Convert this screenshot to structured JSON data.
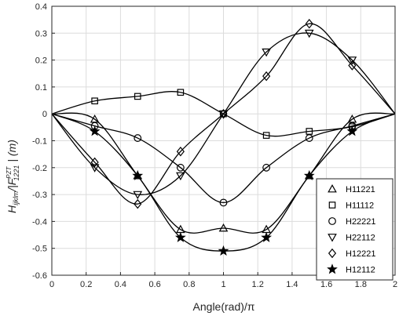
{
  "chart_data": {
    "type": "line",
    "title": "",
    "xlabel": "Angle(rad)/π",
    "ylabel_parts": {
      "main": "H",
      "main_sub": "ijklm",
      "divider": "/|F",
      "f_sub": "1221",
      "f_sup": "PZT",
      "unit": "| (m)"
    },
    "xlim": [
      0,
      2
    ],
    "ylim": [
      -0.6,
      0.4
    ],
    "xticks": [
      0,
      0.2,
      0.4,
      0.6,
      0.8,
      1,
      1.2,
      1.4,
      1.6,
      1.8,
      2
    ],
    "xtick_labels": [
      "0",
      "0.2",
      "0.4",
      "0.6",
      "0.8",
      "1",
      "1.2",
      "1.4",
      "1.6",
      "1.8",
      "2"
    ],
    "yticks": [
      0.4,
      0.3,
      0.2,
      0.1,
      0,
      -0.1,
      -0.2,
      -0.3,
      -0.4,
      -0.5,
      -0.6
    ],
    "ytick_labels": [
      "0.4",
      "0.3",
      "0.2",
      "0.1",
      "0",
      "-0.1",
      "-0.2",
      "-0.3",
      "-0.4",
      "-0.5",
      "-0.6"
    ],
    "grid": true,
    "legend_position": "bottom-right",
    "series": [
      {
        "name": "H11221",
        "marker": "triangle-up",
        "x": [
          0,
          0.25,
          0.5,
          0.75,
          1,
          1.25,
          1.5,
          1.75,
          2
        ],
        "y": [
          0,
          -0.02,
          -0.23,
          -0.43,
          -0.425,
          -0.43,
          -0.23,
          -0.02,
          0
        ]
      },
      {
        "name": "H11112",
        "marker": "square",
        "x": [
          0,
          0.25,
          0.5,
          0.75,
          1,
          1.25,
          1.5,
          1.75,
          2
        ],
        "y": [
          0,
          0.048,
          0.065,
          0.08,
          0,
          -0.08,
          -0.065,
          -0.048,
          0
        ]
      },
      {
        "name": "H22221",
        "marker": "circle",
        "x": [
          0,
          0.25,
          0.5,
          0.75,
          1,
          1.25,
          1.5,
          1.75,
          2
        ],
        "y": [
          0,
          -0.045,
          -0.09,
          -0.2,
          -0.33,
          -0.2,
          -0.09,
          -0.045,
          0
        ]
      },
      {
        "name": "H22112",
        "marker": "triangle-down",
        "x": [
          0,
          0.25,
          0.5,
          0.75,
          1,
          1.25,
          1.5,
          1.75,
          2
        ],
        "y": [
          0,
          -0.2,
          -0.3,
          -0.23,
          0,
          0.23,
          0.3,
          0.2,
          0
        ]
      },
      {
        "name": "H12221",
        "marker": "diamond",
        "x": [
          0,
          0.25,
          0.5,
          0.75,
          1,
          1.25,
          1.5,
          1.75,
          2
        ],
        "y": [
          0,
          -0.18,
          -0.335,
          -0.14,
          0,
          0.14,
          0.335,
          0.18,
          0
        ]
      },
      {
        "name": "H12112",
        "marker": "star",
        "x": [
          0,
          0.25,
          0.5,
          0.75,
          1,
          1.25,
          1.5,
          1.75,
          2
        ],
        "y": [
          0,
          -0.065,
          -0.23,
          -0.46,
          -0.51,
          -0.46,
          -0.23,
          -0.065,
          0
        ]
      }
    ]
  }
}
